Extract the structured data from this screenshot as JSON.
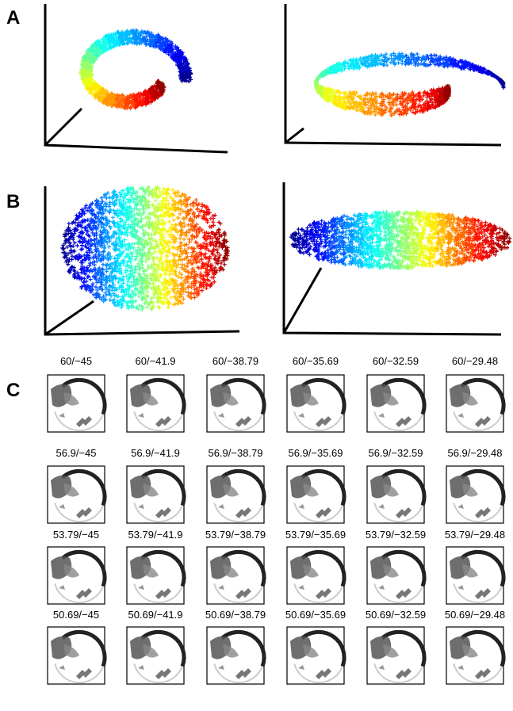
{
  "panels": {
    "labels": [
      "A",
      "B",
      "C"
    ]
  },
  "grid": {
    "rows": [
      [
        "60/−45",
        "60/−41.9",
        "60/−38.79",
        "60/−35.69",
        "60/−32.59",
        "60/−29.48"
      ],
      [
        "56.9/−45",
        "56.9/−41.9",
        "56.9/−38.79",
        "56.9/−35.69",
        "56.9/−32.59",
        "56.9/−29.48"
      ],
      [
        "53.79/−45",
        "53.79/−41.9",
        "53.79/−38.79",
        "53.79/−35.69",
        "53.79/−32.59",
        "53.79/−29.48"
      ],
      [
        "50.69/−45",
        "50.69/−41.9",
        "50.69/−38.79",
        "50.69/−35.69",
        "50.69/−32.59",
        "50.69/−29.48"
      ]
    ]
  }
}
